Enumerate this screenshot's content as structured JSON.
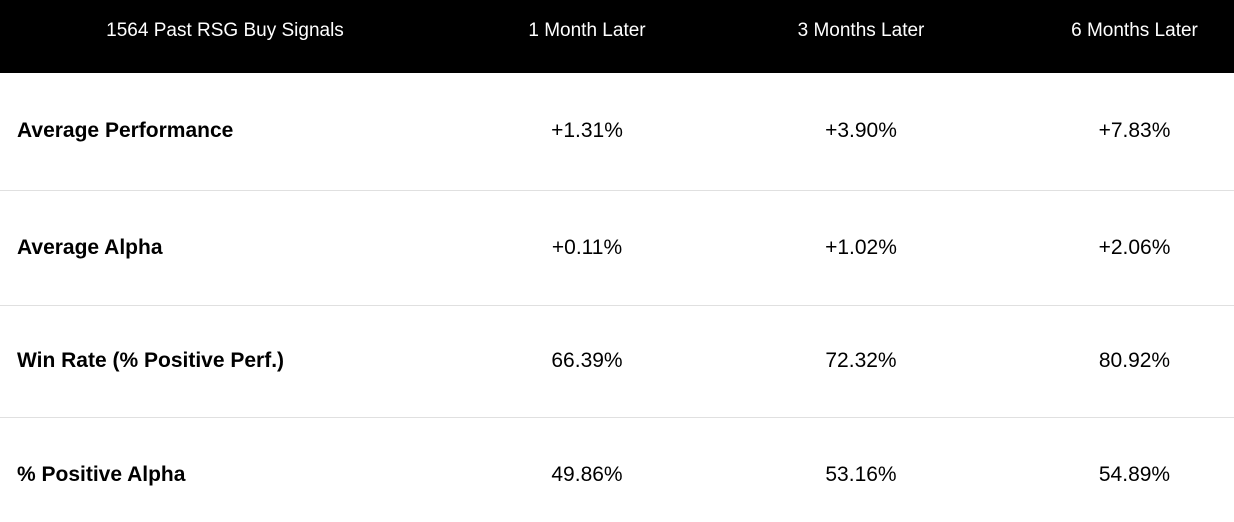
{
  "table": {
    "header": {
      "col0": "1564 Past RSG Buy Signals",
      "col1": "1 Month Later",
      "col2": "3 Months Later",
      "col3": "6 Months Later"
    },
    "rows": [
      {
        "label": "Average Performance",
        "values": [
          "+1.31%",
          "+3.90%",
          "+7.83%"
        ]
      },
      {
        "label": "Average Alpha",
        "values": [
          "+0.11%",
          "+1.02%",
          "+2.06%"
        ]
      },
      {
        "label": "Win Rate (% Positive Perf.)",
        "values": [
          "66.39%",
          "72.32%",
          "80.92%"
        ]
      },
      {
        "label": "% Positive Alpha",
        "values": [
          "49.86%",
          "53.16%",
          "54.89%"
        ]
      }
    ]
  },
  "colors": {
    "header_bg": "#000000",
    "header_text": "#ffffff",
    "body_text": "#000000",
    "divider": "#e0e0e0",
    "background": "#ffffff"
  },
  "chart_data": {
    "type": "table",
    "title": "1564 Past RSG Buy Signals",
    "signal_count": 1564,
    "columns": [
      "1 Month Later",
      "3 Months Later",
      "6 Months Later"
    ],
    "metrics": [
      "Average Performance",
      "Average Alpha",
      "Win Rate (% Positive Perf.)",
      "% Positive Alpha"
    ],
    "series": [
      {
        "name": "Average Performance",
        "values_pct": [
          1.31,
          3.9,
          7.83
        ]
      },
      {
        "name": "Average Alpha",
        "values_pct": [
          0.11,
          1.02,
          2.06
        ]
      },
      {
        "name": "Win Rate (% Positive Perf.)",
        "values_pct": [
          66.39,
          72.32,
          80.92
        ]
      },
      {
        "name": "% Positive Alpha",
        "values_pct": [
          49.86,
          53.16,
          54.89
        ]
      }
    ]
  }
}
